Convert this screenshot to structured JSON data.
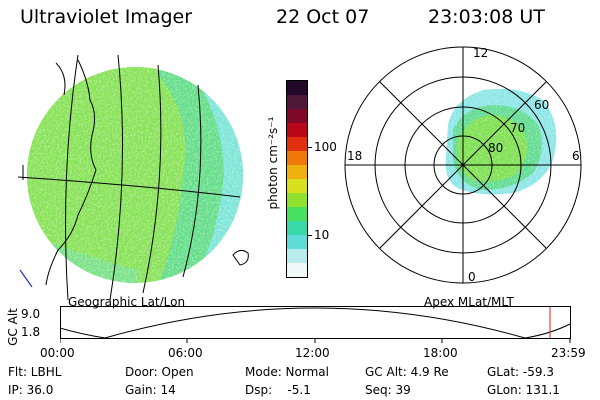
{
  "header": {
    "instrument": "Ultraviolet Imager",
    "date": "22 Oct 07",
    "time": "23:03:08 UT"
  },
  "panels": {
    "left_caption": "Geographic Lat/Lon",
    "right_caption": "Apex MLat/MLT"
  },
  "colorbar": {
    "unit_label": "photon cm⁻²s⁻¹",
    "ticks": [
      "100",
      "10"
    ],
    "colors": [
      "#f0f8f8",
      "#b8ecec",
      "#60dcd8",
      "#38d8a8",
      "#48e060",
      "#90e030",
      "#d8e020",
      "#f0b010",
      "#f07808",
      "#e03010",
      "#b80818",
      "#800828",
      "#501838",
      "#200828"
    ]
  },
  "polar": {
    "mlt_labels": [
      "12",
      "18",
      "6",
      "0"
    ],
    "mlat_labels": [
      "60",
      "70",
      "80"
    ]
  },
  "altitude_plot": {
    "axis_label": "GC Alt",
    "y_ticks": [
      "9.0",
      "1.8"
    ],
    "x_ticks": [
      "00:00",
      "06:00",
      "12:00",
      "18:00",
      "23:59"
    ],
    "current_marker_color": "#e02020"
  },
  "status": {
    "flt": "Flt: LBHL",
    "ip": "IP: 36.0",
    "door": "Door: Open",
    "gain": "Gain: 14",
    "mode": "Mode: Normal",
    "dsp": "Dsp:    -5.1",
    "gcalt": "GC Alt: 4.9 Re",
    "seq": "Seq: 39",
    "glat": "GLat: -59.3",
    "glon": "GLon: 131.1"
  }
}
